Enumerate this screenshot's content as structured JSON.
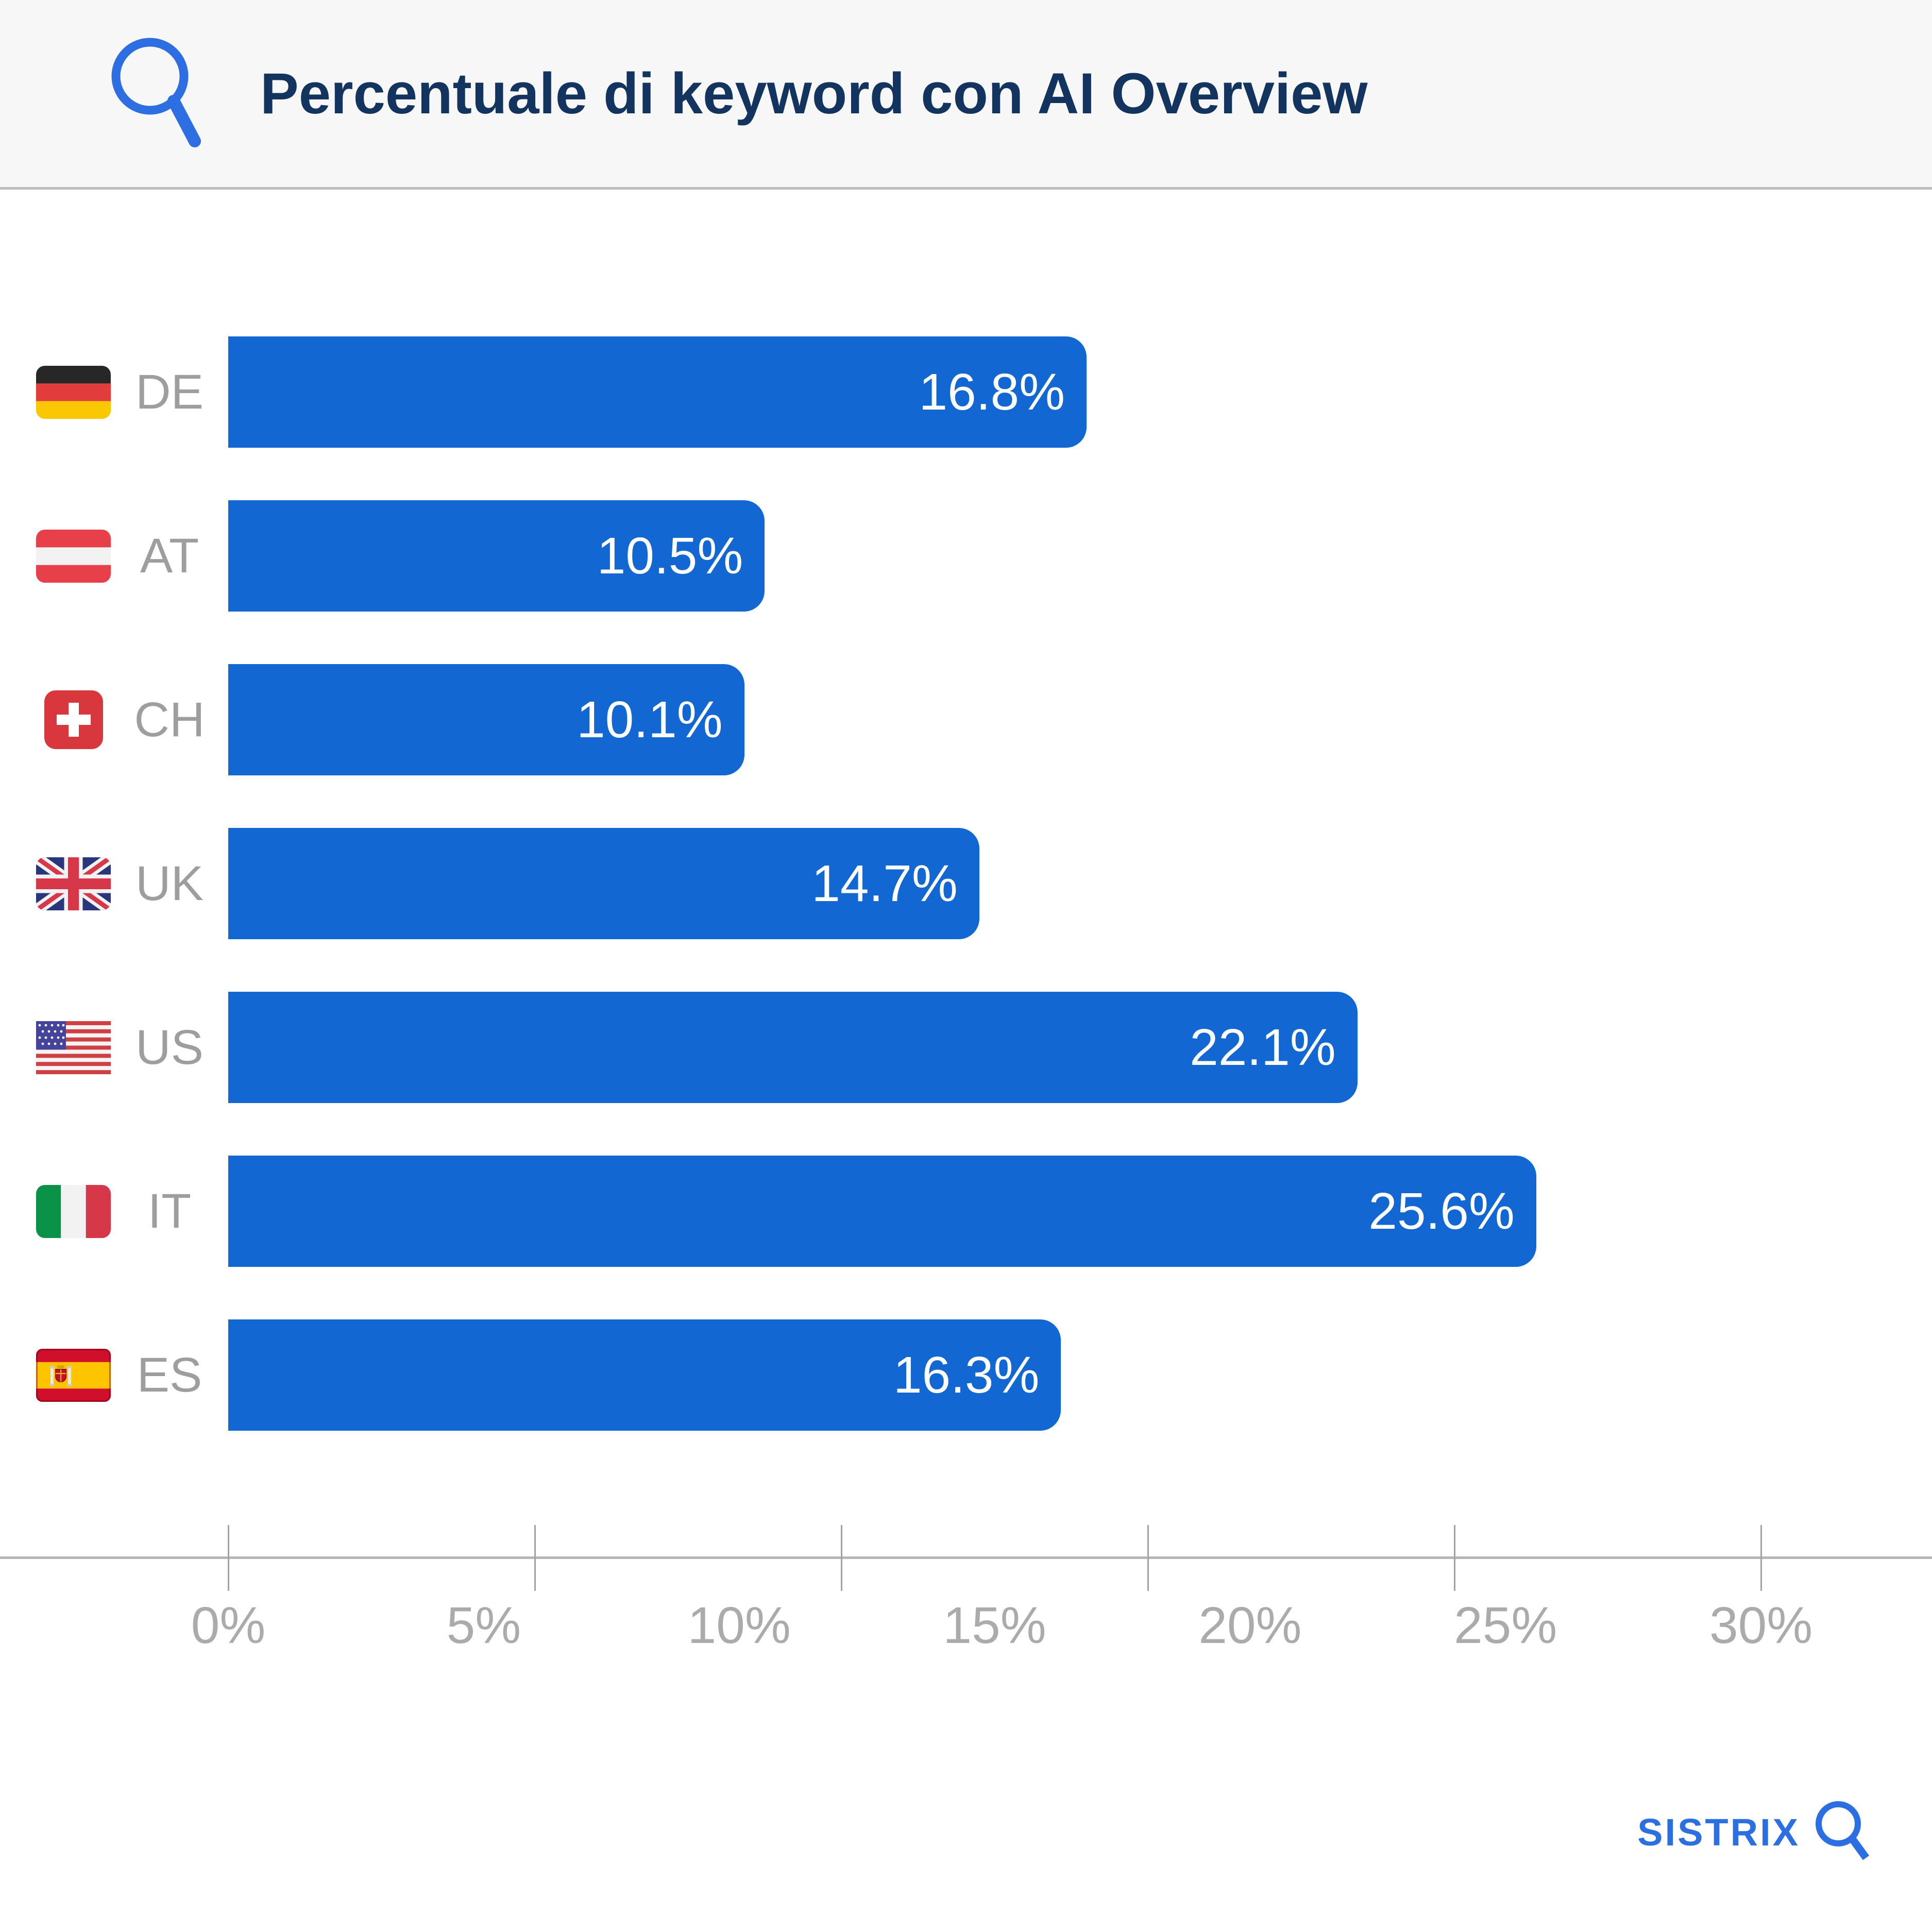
{
  "header": {
    "title": "Percentuale di keyword con AI Overview"
  },
  "chart_data": {
    "type": "bar",
    "orientation": "horizontal",
    "title": "Percentuale di keyword con AI Overview",
    "categories": [
      "DE",
      "AT",
      "CH",
      "UK",
      "US",
      "IT",
      "ES"
    ],
    "values": [
      16.8,
      10.5,
      10.1,
      14.7,
      22.1,
      25.6,
      16.3
    ],
    "value_labels": [
      "16.8%",
      "10.5%",
      "10.1%",
      "14.7%",
      "22.1%",
      "25.6%",
      "16.3%"
    ],
    "flag_icons": [
      "germany-flag-icon",
      "austria-flag-icon",
      "switzerland-flag-icon",
      "uk-flag-icon",
      "us-flag-icon",
      "italy-flag-icon",
      "spain-flag-icon"
    ],
    "xlabel": "",
    "ylabel": "",
    "x_tick_labels": [
      "0%",
      "5%",
      "10%",
      "15%",
      "20%",
      "25%",
      "30%"
    ],
    "x_tick_label_positions": [
      0,
      5,
      10,
      15,
      20,
      25,
      30
    ],
    "x_tick_mark_positions": [
      0,
      6,
      12,
      18,
      24,
      30
    ],
    "xlim": [
      0,
      33.3
    ],
    "grid": false,
    "legend": false,
    "bar_color": "#1267d2",
    "value_label_color": "#ffffff"
  },
  "footer": {
    "brand": "SISTRIX"
  }
}
